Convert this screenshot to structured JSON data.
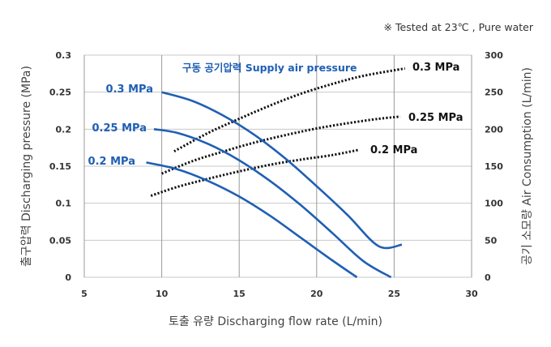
{
  "note": "※  Tested at  23℃ , Pure water",
  "chart_data": {
    "type": "line",
    "xlabel": "토출 유량 Discharging flow rate (L/min)",
    "ylabel": "출구압력 Discharging pressure (MPa)",
    "y2label": "공기 소모량 Air Consumption (L/min)",
    "xlim": [
      5,
      30
    ],
    "ylim": [
      0,
      0.3
    ],
    "y2lim": [
      0,
      300
    ],
    "x_ticks": [
      "5",
      "10",
      "15",
      "20",
      "25",
      "30"
    ],
    "y_ticks": [
      "0",
      "0.05",
      "0.1",
      "0.15",
      "0.2",
      "0.25",
      "0.3"
    ],
    "y2_ticks": [
      "0",
      "50",
      "100",
      "150",
      "200",
      "250",
      "300"
    ],
    "grid": true,
    "supply_label": "구동 공기압력 Supply air pressure",
    "pressure_series": [
      {
        "name": "0.3 MPa",
        "color": "#1f5fb4",
        "points": [
          [
            10,
            0.25
          ],
          [
            12,
            0.238
          ],
          [
            14,
            0.218
          ],
          [
            16,
            0.192
          ],
          [
            18,
            0.16
          ],
          [
            20,
            0.123
          ],
          [
            22,
            0.084
          ],
          [
            24,
            0.042
          ],
          [
            25.5,
            0.044
          ]
        ]
      },
      {
        "name": "0.25 MPa",
        "color": "#1f5fb4",
        "points": [
          [
            9.5,
            0.2
          ],
          [
            11,
            0.195
          ],
          [
            13,
            0.18
          ],
          [
            15,
            0.158
          ],
          [
            17,
            0.13
          ],
          [
            19,
            0.097
          ],
          [
            21,
            0.06
          ],
          [
            23,
            0.022
          ],
          [
            24.8,
            0.0
          ]
        ]
      },
      {
        "name": "0.2 MPa",
        "color": "#1f5fb4",
        "points": [
          [
            9,
            0.155
          ],
          [
            11,
            0.146
          ],
          [
            13,
            0.13
          ],
          [
            15,
            0.109
          ],
          [
            17,
            0.083
          ],
          [
            19,
            0.053
          ],
          [
            21,
            0.023
          ],
          [
            22.6,
            0.0
          ]
        ]
      }
    ],
    "air_series": [
      {
        "name": "0.3 MPa",
        "color": "#111111",
        "points": [
          [
            10.8,
            170
          ],
          [
            13,
            195
          ],
          [
            15,
            214
          ],
          [
            17,
            232
          ],
          [
            19,
            248
          ],
          [
            21,
            261
          ],
          [
            23,
            272
          ],
          [
            25.7,
            282
          ]
        ]
      },
      {
        "name": "0.25 MPa",
        "color": "#111111",
        "points": [
          [
            10,
            140
          ],
          [
            12,
            157
          ],
          [
            14,
            170
          ],
          [
            16,
            182
          ],
          [
            18,
            192
          ],
          [
            20,
            201
          ],
          [
            22,
            208
          ],
          [
            24,
            214
          ],
          [
            25.4,
            217
          ]
        ]
      },
      {
        "name": "0.2 MPa",
        "color": "#111111",
        "points": [
          [
            9.3,
            110
          ],
          [
            11,
            122
          ],
          [
            13,
            133
          ],
          [
            15,
            143
          ],
          [
            17,
            152
          ],
          [
            19,
            159
          ],
          [
            21,
            165
          ],
          [
            22.7,
            172
          ]
        ]
      }
    ]
  }
}
